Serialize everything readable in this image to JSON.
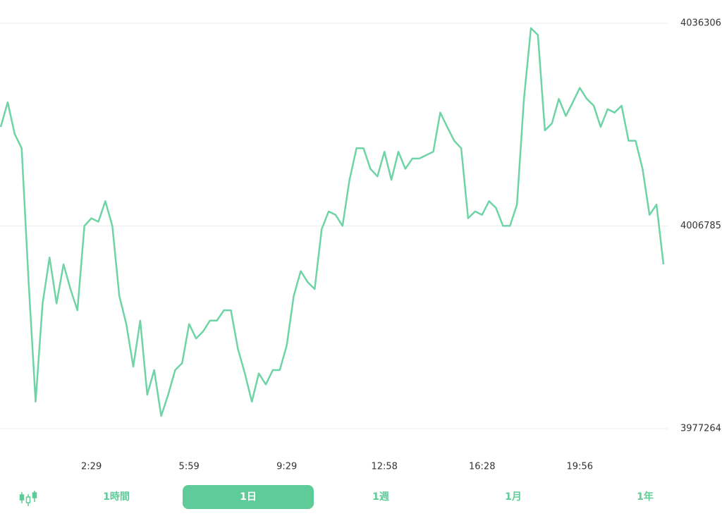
{
  "chart_data": {
    "type": "line",
    "categories": [
      null,
      null,
      null,
      null,
      null,
      null,
      null,
      null,
      null,
      null,
      null,
      null,
      null,
      "2:29",
      null,
      null,
      null,
      null,
      null,
      null,
      null,
      null,
      null,
      null,
      null,
      null,
      null,
      "5:59",
      null,
      null,
      null,
      null,
      null,
      null,
      null,
      null,
      null,
      null,
      null,
      null,
      null,
      "9:29",
      null,
      null,
      null,
      null,
      null,
      null,
      null,
      null,
      null,
      null,
      null,
      null,
      null,
      "12:58",
      null,
      null,
      null,
      null,
      null,
      null,
      null,
      null,
      null,
      null,
      null,
      null,
      null,
      "16:28",
      null,
      null,
      null,
      null,
      null,
      null,
      null,
      null,
      null,
      null,
      null,
      null,
      null,
      "19:56",
      null,
      null,
      null,
      null,
      null,
      null,
      null,
      null,
      null,
      null,
      null,
      null
    ],
    "values": [
      4021200,
      4024800,
      4020200,
      4018100,
      3998600,
      3981200,
      3995500,
      4002200,
      3995500,
      4001200,
      3997600,
      3994500,
      4006800,
      4007900,
      4007400,
      4010400,
      4006800,
      3996600,
      3992500,
      3986300,
      3993000,
      3982200,
      3985800,
      3979100,
      3982200,
      3985800,
      3986800,
      3992500,
      3990400,
      3991400,
      3993000,
      3993000,
      3994500,
      3994500,
      3988900,
      3985300,
      3981200,
      3985300,
      3983700,
      3985800,
      3985800,
      3989400,
      3996600,
      4000200,
      3998600,
      3997600,
      4006300,
      4008900,
      4008400,
      4006800,
      4013500,
      4018100,
      4018100,
      4015100,
      4014000,
      4017600,
      4013500,
      4017600,
      4015100,
      4016600,
      4016600,
      4017100,
      4017600,
      4023300,
      4021200,
      4019200,
      4018100,
      4007900,
      4008900,
      4008400,
      4010400,
      4009400,
      4006800,
      4006800,
      4009900,
      4025300,
      4035600,
      4034600,
      4020700,
      4021700,
      4025300,
      4022800,
      4024800,
      4026900,
      4025300,
      4024300,
      4021200,
      4023800,
      4023300,
      4024300,
      4019200,
      4019200,
      4015100,
      4008400,
      4009900,
      4001200
    ],
    "color": "#6fd4a5",
    "ylim": [
      3977264,
      4036306
    ],
    "yticks": [
      3977264,
      4006785,
      4036306
    ],
    "grid": true
  },
  "controls": {
    "periods": [
      "1時間",
      "1日",
      "1週",
      "1月",
      "1年"
    ],
    "selected": 1
  }
}
